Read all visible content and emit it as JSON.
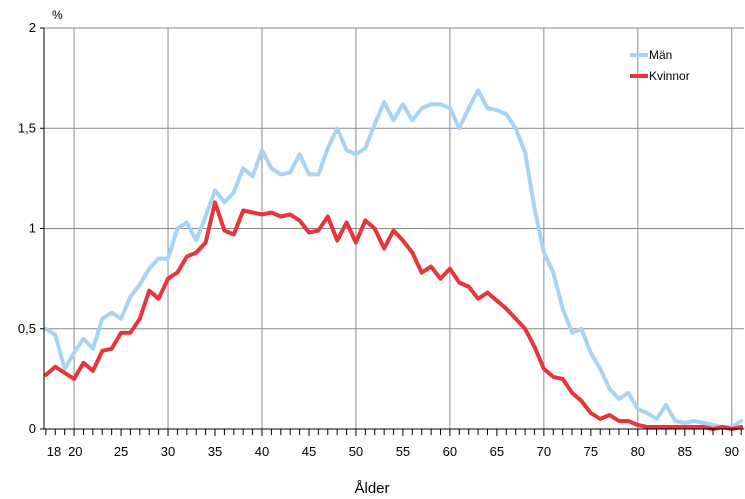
{
  "chart_data": {
    "type": "line",
    "ylabel": "%",
    "xlabel": "Ålder",
    "xlim": [
      16.8,
      91.3
    ],
    "ylim": [
      0,
      2
    ],
    "y_ticks": [
      "0",
      "0,5",
      "1",
      "1,5",
      "2"
    ],
    "y_tick_values": [
      0,
      0.5,
      1,
      1.5,
      2
    ],
    "x_tick_labels": [
      {
        "x": 18,
        "label": "18"
      },
      {
        "x": 20,
        "label": "20"
      },
      {
        "x": 25,
        "label": "25"
      },
      {
        "x": 30,
        "label": "30"
      },
      {
        "x": 35,
        "label": "35"
      },
      {
        "x": 40,
        "label": "40"
      },
      {
        "x": 45,
        "label": "45"
      },
      {
        "x": 50,
        "label": "50"
      },
      {
        "x": 55,
        "label": "55"
      },
      {
        "x": 60,
        "label": "60"
      },
      {
        "x": 65,
        "label": "65"
      },
      {
        "x": 70,
        "label": "70"
      },
      {
        "x": 75,
        "label": "75"
      },
      {
        "x": 80,
        "label": "80"
      },
      {
        "x": 85,
        "label": "85"
      },
      {
        "x": 90,
        "label": "90"
      }
    ],
    "major_gridlines_x": [
      20,
      30,
      40,
      50,
      60,
      70,
      80,
      90
    ],
    "grid": true,
    "legend_position": "top-right",
    "series": [
      {
        "name": "Män",
        "color": "#a9d3f5",
        "x": [
          17,
          18,
          19,
          20,
          21,
          22,
          23,
          24,
          25,
          26,
          27,
          28,
          29,
          30,
          31,
          32,
          33,
          34,
          35,
          36,
          37,
          38,
          39,
          40,
          41,
          42,
          43,
          44,
          45,
          46,
          47,
          48,
          49,
          50,
          51,
          52,
          53,
          54,
          55,
          56,
          57,
          58,
          59,
          60,
          61,
          62,
          63,
          64,
          65,
          66,
          67,
          68,
          69,
          70,
          71,
          72,
          73,
          74,
          75,
          76,
          77,
          78,
          79,
          80,
          81,
          82,
          83,
          84,
          85,
          86,
          87,
          88,
          89,
          90,
          91
        ],
        "values": [
          0.5,
          0.47,
          0.3,
          0.38,
          0.45,
          0.4,
          0.55,
          0.58,
          0.55,
          0.66,
          0.72,
          0.8,
          0.85,
          0.85,
          1.0,
          1.03,
          0.94,
          1.06,
          1.19,
          1.13,
          1.18,
          1.3,
          1.26,
          1.39,
          1.3,
          1.27,
          1.28,
          1.37,
          1.27,
          1.27,
          1.4,
          1.5,
          1.39,
          1.37,
          1.4,
          1.52,
          1.63,
          1.54,
          1.62,
          1.54,
          1.6,
          1.62,
          1.62,
          1.6,
          1.5,
          1.6,
          1.69,
          1.6,
          1.59,
          1.57,
          1.5,
          1.38,
          1.1,
          0.88,
          0.78,
          0.6,
          0.48,
          0.5,
          0.38,
          0.3,
          0.2,
          0.15,
          0.18,
          0.1,
          0.08,
          0.05,
          0.12,
          0.04,
          0.03,
          0.04,
          0.03,
          0.02,
          0.01,
          0.01,
          0.04
        ]
      },
      {
        "name": "Kvinnor",
        "color": "#e8343a",
        "x": [
          17,
          18,
          19,
          20,
          21,
          22,
          23,
          24,
          25,
          26,
          27,
          28,
          29,
          30,
          31,
          32,
          33,
          34,
          35,
          36,
          37,
          38,
          39,
          40,
          41,
          42,
          43,
          44,
          45,
          46,
          47,
          48,
          49,
          50,
          51,
          52,
          53,
          54,
          55,
          56,
          57,
          58,
          59,
          60,
          61,
          62,
          63,
          64,
          65,
          66,
          67,
          68,
          69,
          70,
          71,
          72,
          73,
          74,
          75,
          76,
          77,
          78,
          79,
          80,
          81,
          82,
          83,
          84,
          85,
          86,
          87,
          88,
          89,
          90,
          91
        ],
        "values": [
          0.27,
          0.31,
          0.28,
          0.25,
          0.33,
          0.29,
          0.39,
          0.4,
          0.48,
          0.48,
          0.55,
          0.69,
          0.65,
          0.75,
          0.78,
          0.86,
          0.88,
          0.93,
          1.13,
          0.99,
          0.97,
          1.09,
          1.08,
          1.07,
          1.08,
          1.06,
          1.07,
          1.04,
          0.98,
          0.99,
          1.06,
          0.94,
          1.03,
          0.93,
          1.04,
          1.0,
          0.9,
          0.99,
          0.94,
          0.88,
          0.78,
          0.81,
          0.75,
          0.8,
          0.73,
          0.71,
          0.65,
          0.68,
          0.64,
          0.6,
          0.55,
          0.5,
          0.41,
          0.3,
          0.26,
          0.25,
          0.18,
          0.14,
          0.08,
          0.05,
          0.07,
          0.04,
          0.04,
          0.02,
          0.01,
          0.01,
          0.01,
          0.01,
          0.01,
          0.01,
          0.01,
          0.0,
          0.01,
          0.0,
          0.01
        ]
      }
    ]
  }
}
